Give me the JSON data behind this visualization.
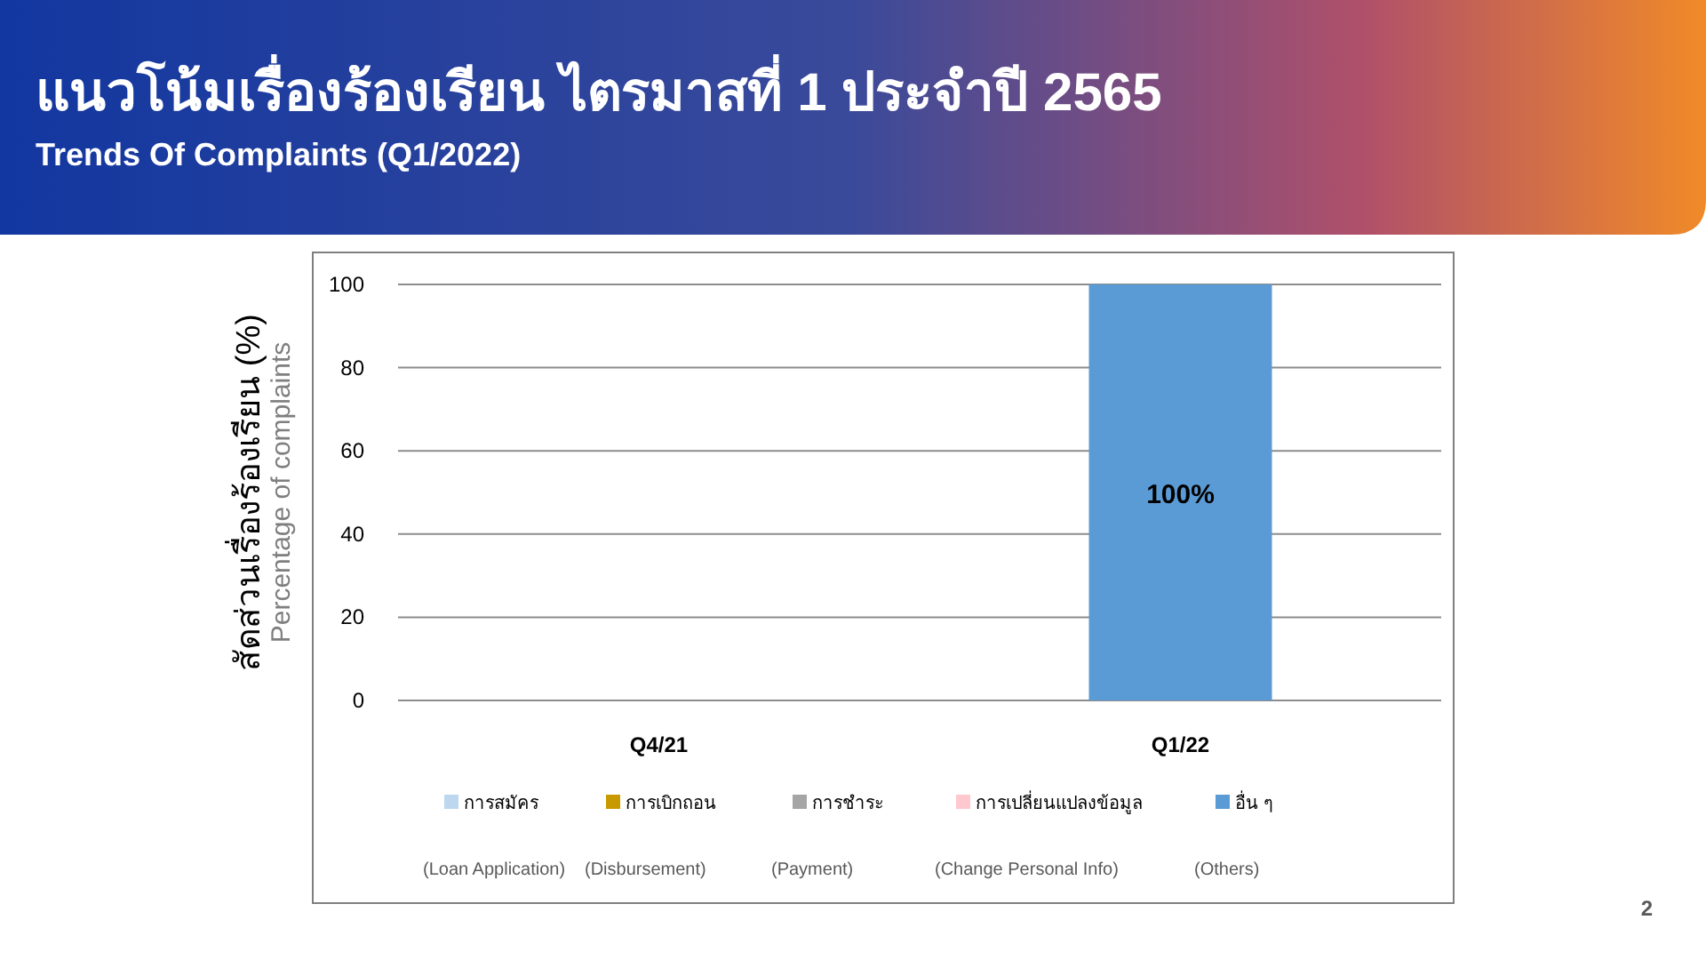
{
  "chart_data": {
    "type": "bar",
    "title": "แนวโน้มเรื่องร้องเรียน ไตรมาสที่ 1 ประจำปี 2565",
    "subtitle": "Trends Of Complaints (Q1/2022)",
    "ylabel": "สัดส่วนเรื่องร้องเรียน (%)",
    "categories": [
      "Q4/21",
      "Q1/22"
    ],
    "series": [
      {
        "name": "การสมัคร",
        "color": "#bdd7ee",
        "values": [
          null,
          0
        ]
      },
      {
        "name": "การเบิกถอน",
        "color": "#c99a00",
        "values": [
          null,
          0
        ]
      },
      {
        "name": "การชำระ",
        "color": "#a5a5a5",
        "values": [
          null,
          0
        ]
      },
      {
        "name": "การเปลี่ยนแปลงข้อมูล",
        "color": "#ffc7ce",
        "values": [
          null,
          0
        ]
      },
      {
        "name": "อื่น ๆ",
        "color": "#5b9bd5",
        "values": [
          null,
          100
        ],
        "value_labels": [
          null,
          "100%"
        ]
      }
    ],
    "ylim": [
      0,
      100
    ],
    "yticks": [
      0,
      20,
      40,
      60,
      80,
      100
    ],
    "grid": "y",
    "legend": "bottom",
    "annotations": [
      "Percentage of complaints",
      "(Loan Application)",
      "(Disbursement)",
      "(Payment)",
      "(Change Personal Info)",
      "(Others)",
      "2"
    ]
  }
}
